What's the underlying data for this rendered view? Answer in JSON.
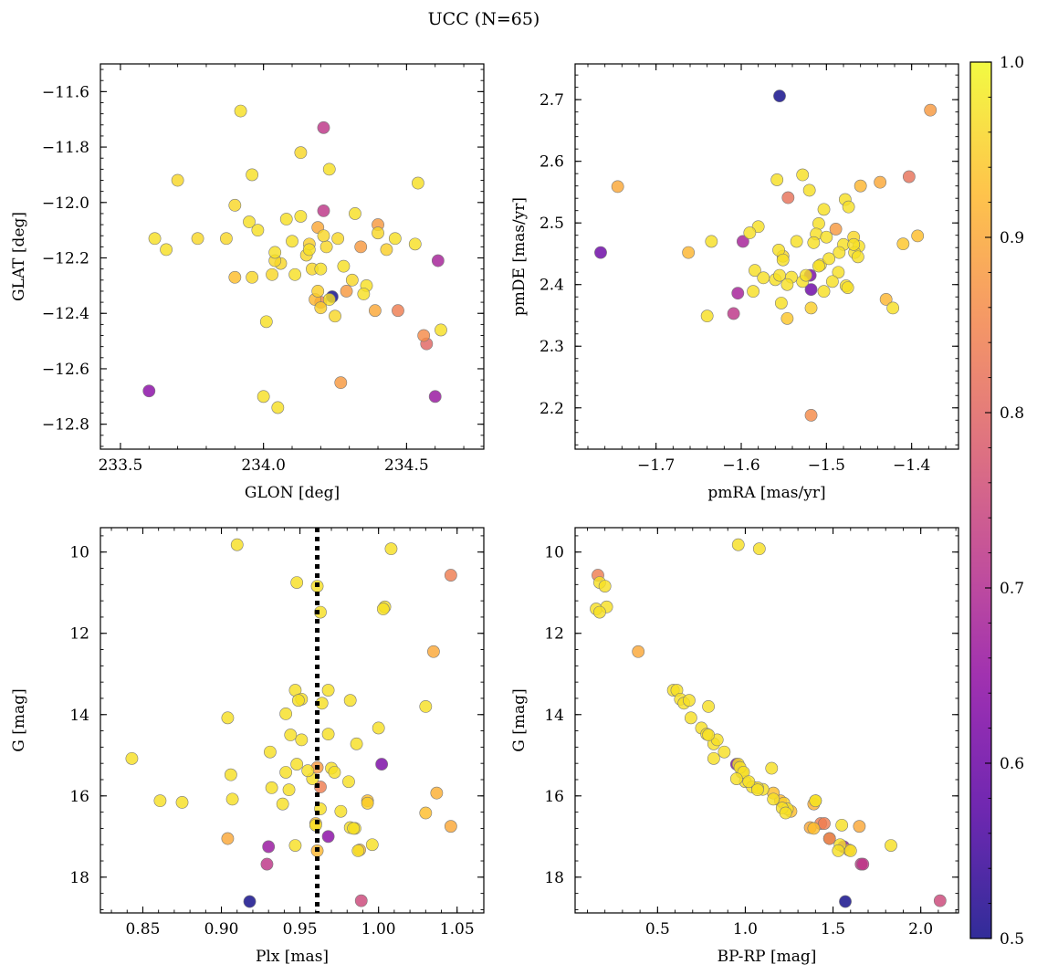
{
  "figure": {
    "suptitle": "UCC (N=65)"
  },
  "colorbar": {
    "label": "",
    "vmin": 0.5,
    "vmax": 1.0,
    "ticks": [
      0.5,
      0.6,
      0.7,
      0.8,
      0.9,
      1.0
    ],
    "tick_labels": [
      "0.5",
      "0.6",
      "0.7",
      "0.8",
      "0.9",
      "1.0"
    ],
    "colormap": "plasma"
  },
  "chart_data": [
    {
      "type": "scatter",
      "xlabel": "GLON [deg]",
      "ylabel": "GLAT [deg]",
      "xlim": [
        233.43,
        234.77
      ],
      "ylim": [
        -12.89,
        -11.5
      ],
      "xticks": [
        233.5,
        234.0,
        234.5
      ],
      "xtick_labels": [
        "233.5",
        "234.0",
        "234.5"
      ],
      "yticks": [
        -11.6,
        -11.8,
        -12.0,
        -12.2,
        -12.4,
        -12.6,
        -12.8
      ],
      "ytick_labels": [
        "−11.6",
        "−11.8",
        "−12.0",
        "−12.2",
        "−12.4",
        "−12.6",
        "−12.8"
      ],
      "x": [
        233.92,
        234.21,
        234.13,
        233.7,
        233.96,
        234.23,
        234.54,
        233.9,
        234.21,
        234.32,
        233.95,
        234.08,
        234.13,
        234.19,
        233.98,
        233.62,
        233.66,
        233.77,
        233.87,
        234.04,
        234.16,
        234.22,
        234.26,
        234.34,
        234.43,
        234.4,
        234.53,
        234.16,
        234.21,
        234.06,
        234.04,
        234.17,
        234.11,
        233.9,
        233.96,
        234.03,
        234.2,
        234.31,
        234.36,
        234.35,
        234.29,
        234.28,
        234.19,
        234.2,
        234.18,
        234.25,
        234.39,
        234.47,
        234.61,
        234.24,
        233.6,
        234.01,
        234.0,
        234.05,
        234.27,
        234.56,
        234.57,
        234.62,
        234.6,
        234.23,
        234.15,
        234.1,
        234.2,
        234.4,
        234.46
      ],
      "y": [
        -11.67,
        -11.73,
        -11.82,
        -11.92,
        -11.9,
        -11.88,
        -11.93,
        -12.01,
        -12.03,
        -12.04,
        -12.07,
        -12.06,
        -12.05,
        -12.09,
        -12.1,
        -12.13,
        -12.17,
        -12.13,
        -12.13,
        -12.18,
        -12.15,
        -12.16,
        -12.13,
        -12.16,
        -12.17,
        -12.08,
        -12.15,
        -12.17,
        -12.12,
        -12.22,
        -12.21,
        -12.24,
        -12.26,
        -12.27,
        -12.27,
        -12.26,
        -12.24,
        -12.28,
        -12.3,
        -12.33,
        -12.32,
        -12.23,
        -12.32,
        -12.36,
        -12.35,
        -12.41,
        -12.39,
        -12.39,
        -12.21,
        -12.34,
        -12.68,
        -12.43,
        -12.7,
        -12.74,
        -12.65,
        -12.48,
        -12.51,
        -12.46,
        -12.7,
        -12.35,
        -12.19,
        -12.14,
        -12.38,
        -12.11,
        -12.13
      ],
      "c": [
        0.97,
        0.72,
        0.96,
        0.96,
        0.97,
        0.97,
        0.97,
        0.96,
        0.72,
        0.97,
        0.97,
        0.97,
        0.97,
        0.9,
        0.97,
        0.97,
        0.97,
        0.96,
        0.96,
        0.97,
        0.95,
        0.96,
        0.96,
        0.88,
        0.95,
        0.88,
        0.97,
        0.97,
        0.96,
        0.96,
        0.96,
        0.96,
        0.97,
        0.93,
        0.96,
        0.96,
        0.97,
        0.96,
        0.97,
        0.97,
        0.88,
        0.97,
        0.95,
        0.85,
        0.92,
        0.96,
        0.9,
        0.84,
        0.68,
        0.5,
        0.64,
        0.97,
        0.97,
        0.97,
        0.88,
        0.86,
        0.8,
        0.97,
        0.66,
        0.97,
        0.96,
        0.97,
        0.95,
        0.96,
        0.97
      ]
    },
    {
      "type": "scatter",
      "xlabel": "pmRA [mas/yr]",
      "ylabel": "pmDE [mas/yr]",
      "xlim": [
        -1.795,
        -1.345
      ],
      "ylim": [
        2.133,
        2.758
      ],
      "xticks": [
        -1.7,
        -1.6,
        -1.5,
        -1.4
      ],
      "xtick_labels": [
        "−1.7",
        "−1.6",
        "−1.5",
        "−1.4"
      ],
      "yticks": [
        2.2,
        2.3,
        2.4,
        2.5,
        2.6,
        2.7
      ],
      "ytick_labels": [
        "2.2",
        "2.3",
        "2.4",
        "2.5",
        "2.6",
        "2.7"
      ],
      "x": [
        -1.555,
        -1.378,
        -1.745,
        -1.765,
        -1.558,
        -1.528,
        -1.545,
        -1.52,
        -1.503,
        -1.46,
        -1.478,
        -1.462,
        -1.474,
        -1.437,
        -1.403,
        -1.509,
        -1.535,
        -1.58,
        -1.59,
        -1.598,
        -1.635,
        -1.662,
        -1.584,
        -1.556,
        -1.551,
        -1.512,
        -1.5,
        -1.489,
        -1.48,
        -1.468,
        -1.467,
        -1.56,
        -1.541,
        -1.551,
        -1.528,
        -1.524,
        -1.507,
        -1.497,
        -1.486,
        -1.477,
        -1.463,
        -1.493,
        -1.586,
        -1.604,
        -1.518,
        -1.546,
        -1.553,
        -1.546,
        -1.503,
        -1.475,
        -1.468,
        -1.41,
        -1.393,
        -1.43,
        -1.422,
        -1.518,
        -1.609,
        -1.64,
        -1.555,
        -1.518,
        -1.519,
        -1.574,
        -1.515,
        -1.509,
        -1.485
      ],
      "y": [
        2.706,
        2.683,
        2.559,
        2.452,
        2.57,
        2.578,
        2.541,
        2.553,
        2.522,
        2.56,
        2.538,
        2.462,
        2.526,
        2.566,
        2.575,
        2.499,
        2.47,
        2.494,
        2.484,
        2.47,
        2.47,
        2.452,
        2.423,
        2.456,
        2.446,
        2.482,
        2.477,
        2.49,
        2.465,
        2.477,
        2.452,
        2.408,
        2.412,
        2.44,
        2.405,
        2.415,
        2.432,
        2.442,
        2.42,
        2.398,
        2.445,
        2.405,
        2.389,
        2.386,
        2.392,
        2.4,
        2.37,
        2.345,
        2.389,
        2.395,
        2.465,
        2.466,
        2.479,
        2.376,
        2.362,
        2.362,
        2.353,
        2.349,
        2.415,
        2.188,
        2.415,
        2.411,
        2.468,
        2.43,
        2.452
      ],
      "c": [
        0.5,
        0.88,
        0.9,
        0.6,
        0.97,
        0.97,
        0.82,
        0.97,
        0.97,
        0.92,
        0.97,
        0.97,
        0.97,
        0.9,
        0.82,
        0.97,
        0.97,
        0.97,
        0.97,
        0.68,
        0.97,
        0.92,
        0.97,
        0.97,
        0.96,
        0.97,
        0.97,
        0.88,
        0.97,
        0.96,
        0.97,
        0.97,
        0.97,
        0.97,
        0.97,
        0.97,
        0.97,
        0.97,
        0.97,
        0.97,
        0.97,
        0.97,
        0.97,
        0.68,
        0.6,
        0.97,
        0.97,
        0.94,
        0.97,
        0.97,
        0.97,
        0.94,
        0.93,
        0.92,
        0.97,
        0.95,
        0.72,
        0.97,
        0.97,
        0.86,
        0.62,
        0.97,
        0.97,
        0.97,
        0.97
      ]
    },
    {
      "type": "scatter",
      "xlabel": "Plx [mas]",
      "ylabel": "G [mag]",
      "xlim": [
        0.823,
        1.067
      ],
      "ylim": [
        18.88,
        9.4
      ],
      "xticks": [
        0.85,
        0.9,
        0.95,
        1.0,
        1.05
      ],
      "xtick_labels": [
        "0.85",
        "0.90",
        "0.95",
        "1.00",
        "1.05"
      ],
      "yticks": [
        10,
        12,
        14,
        16,
        18
      ],
      "ytick_labels": [
        "10",
        "12",
        "14",
        "16",
        "18"
      ],
      "vline": {
        "x": 0.961,
        "style": "dotted"
      },
      "x": [
        0.91,
        1.008,
        1.046,
        0.948,
        0.961,
        0.963,
        1.004,
        1.003,
        1.035,
        0.947,
        0.968,
        0.951,
        0.949,
        0.964,
        0.982,
        0.904,
        0.941,
        0.944,
        0.951,
        0.968,
        0.931,
        1.0,
        1.03,
        0.843,
        0.941,
        0.948,
        0.958,
        0.97,
        0.972,
        0.986,
        1.002,
        0.906,
        0.932,
        0.943,
        0.955,
        0.961,
        0.963,
        0.981,
        0.982,
        0.993,
        0.993,
        0.985,
        0.907,
        0.861,
        0.875,
        0.963,
        0.96,
        0.96,
        0.976,
        0.996,
        0.984,
        0.947,
        1.037,
        1.03,
        1.046,
        0.904,
        0.93,
        0.929,
        0.968,
        0.988,
        0.989,
        0.918,
        0.987,
        0.961,
        0.939
      ],
      "y": [
        9.82,
        9.92,
        10.57,
        10.75,
        10.84,
        11.48,
        11.35,
        11.4,
        12.45,
        13.4,
        13.4,
        13.62,
        13.65,
        13.72,
        13.65,
        14.08,
        13.98,
        14.5,
        14.62,
        14.48,
        14.92,
        14.33,
        13.8,
        15.08,
        15.42,
        15.22,
        15.58,
        15.32,
        15.42,
        14.72,
        15.22,
        15.48,
        15.8,
        15.85,
        15.38,
        15.3,
        15.78,
        15.65,
        16.78,
        16.18,
        16.12,
        16.8,
        16.08,
        16.12,
        16.16,
        16.32,
        16.68,
        16.72,
        16.38,
        17.2,
        16.8,
        17.22,
        15.93,
        16.42,
        16.75,
        17.05,
        17.25,
        17.68,
        17.0,
        17.33,
        18.58,
        18.6,
        17.35,
        17.35,
        16.2
      ],
      "c": [
        0.97,
        0.97,
        0.84,
        0.97,
        0.97,
        0.97,
        0.97,
        0.97,
        0.9,
        0.97,
        0.97,
        0.97,
        0.97,
        0.97,
        0.97,
        0.97,
        0.97,
        0.97,
        0.97,
        0.97,
        0.97,
        0.97,
        0.97,
        0.97,
        0.97,
        0.97,
        0.97,
        0.97,
        0.97,
        0.97,
        0.62,
        0.97,
        0.97,
        0.97,
        0.97,
        0.88,
        0.84,
        0.97,
        0.97,
        0.95,
        0.93,
        0.97,
        0.97,
        0.97,
        0.97,
        0.97,
        0.93,
        0.97,
        0.97,
        0.97,
        0.97,
        0.97,
        0.91,
        0.93,
        0.9,
        0.9,
        0.66,
        0.72,
        0.64,
        0.92,
        0.75,
        0.5,
        0.97,
        0.92,
        0.97
      ]
    },
    {
      "type": "scatter",
      "xlabel": "BP-RP [mag]",
      "ylabel": "G [mag]",
      "xlim": [
        0.03,
        2.215
      ],
      "ylim": [
        18.88,
        9.4
      ],
      "xticks": [
        0.5,
        1.0,
        1.5,
        2.0
      ],
      "xtick_labels": [
        "0.5",
        "1.0",
        "1.5",
        "2.0"
      ],
      "yticks": [
        10,
        12,
        14,
        16,
        18
      ],
      "ytick_labels": [
        "10",
        "12",
        "14",
        "16",
        "18"
      ],
      "x": [
        0.96,
        1.08,
        0.16,
        0.17,
        0.2,
        0.15,
        0.21,
        0.17,
        0.39,
        0.59,
        0.61,
        0.63,
        0.65,
        0.68,
        0.69,
        0.79,
        0.75,
        0.78,
        0.82,
        0.84,
        0.88,
        0.95,
        0.96,
        0.98,
        1.0,
        1.04,
        1.1,
        1.15,
        1.16,
        0.97,
        0.99,
        1.07,
        1.16,
        1.22,
        1.24,
        1.26,
        1.39,
        1.4,
        1.55,
        1.37,
        1.39,
        1.43,
        1.48,
        1.54,
        1.59,
        1.65,
        1.66,
        1.56,
        1.67,
        1.83,
        2.11,
        1.57,
        1.6,
        1.45,
        1.48,
        0.79,
        0.82,
        0.95,
        1.02,
        1.07,
        1.2,
        1.21,
        1.23,
        1.4,
        1.53
      ],
      "y": [
        9.82,
        9.92,
        10.57,
        10.75,
        10.84,
        11.4,
        11.35,
        11.48,
        12.45,
        13.4,
        13.4,
        13.62,
        13.72,
        13.65,
        14.08,
        13.8,
        14.33,
        14.48,
        14.72,
        14.62,
        14.92,
        15.22,
        15.22,
        15.42,
        15.65,
        15.78,
        15.84,
        15.32,
        16.08,
        15.3,
        15.42,
        15.8,
        15.93,
        16.18,
        16.32,
        16.38,
        16.2,
        16.12,
        16.72,
        16.78,
        16.8,
        16.68,
        17.05,
        17.2,
        17.33,
        16.75,
        17.68,
        17.25,
        17.68,
        17.22,
        18.58,
        18.6,
        17.35,
        16.68,
        17.05,
        14.5,
        15.08,
        15.58,
        15.65,
        15.85,
        16.12,
        16.3,
        16.42,
        16.12,
        17.35
      ],
      "c": [
        0.97,
        0.97,
        0.84,
        0.97,
        0.97,
        0.97,
        0.97,
        0.97,
        0.9,
        0.97,
        0.97,
        0.97,
        0.97,
        0.97,
        0.97,
        0.97,
        0.97,
        0.97,
        0.97,
        0.97,
        0.97,
        0.62,
        0.97,
        0.97,
        0.97,
        0.97,
        0.97,
        0.97,
        0.97,
        0.97,
        0.97,
        0.97,
        0.93,
        0.95,
        0.97,
        0.93,
        0.91,
        0.97,
        0.97,
        0.9,
        0.93,
        0.84,
        0.66,
        0.97,
        0.92,
        0.9,
        0.72,
        0.64,
        0.72,
        0.97,
        0.75,
        0.5,
        0.97,
        0.84,
        0.88,
        0.97,
        0.97,
        0.97,
        0.97,
        0.97,
        0.92,
        0.97,
        0.97,
        0.97,
        0.97
      ]
    }
  ]
}
